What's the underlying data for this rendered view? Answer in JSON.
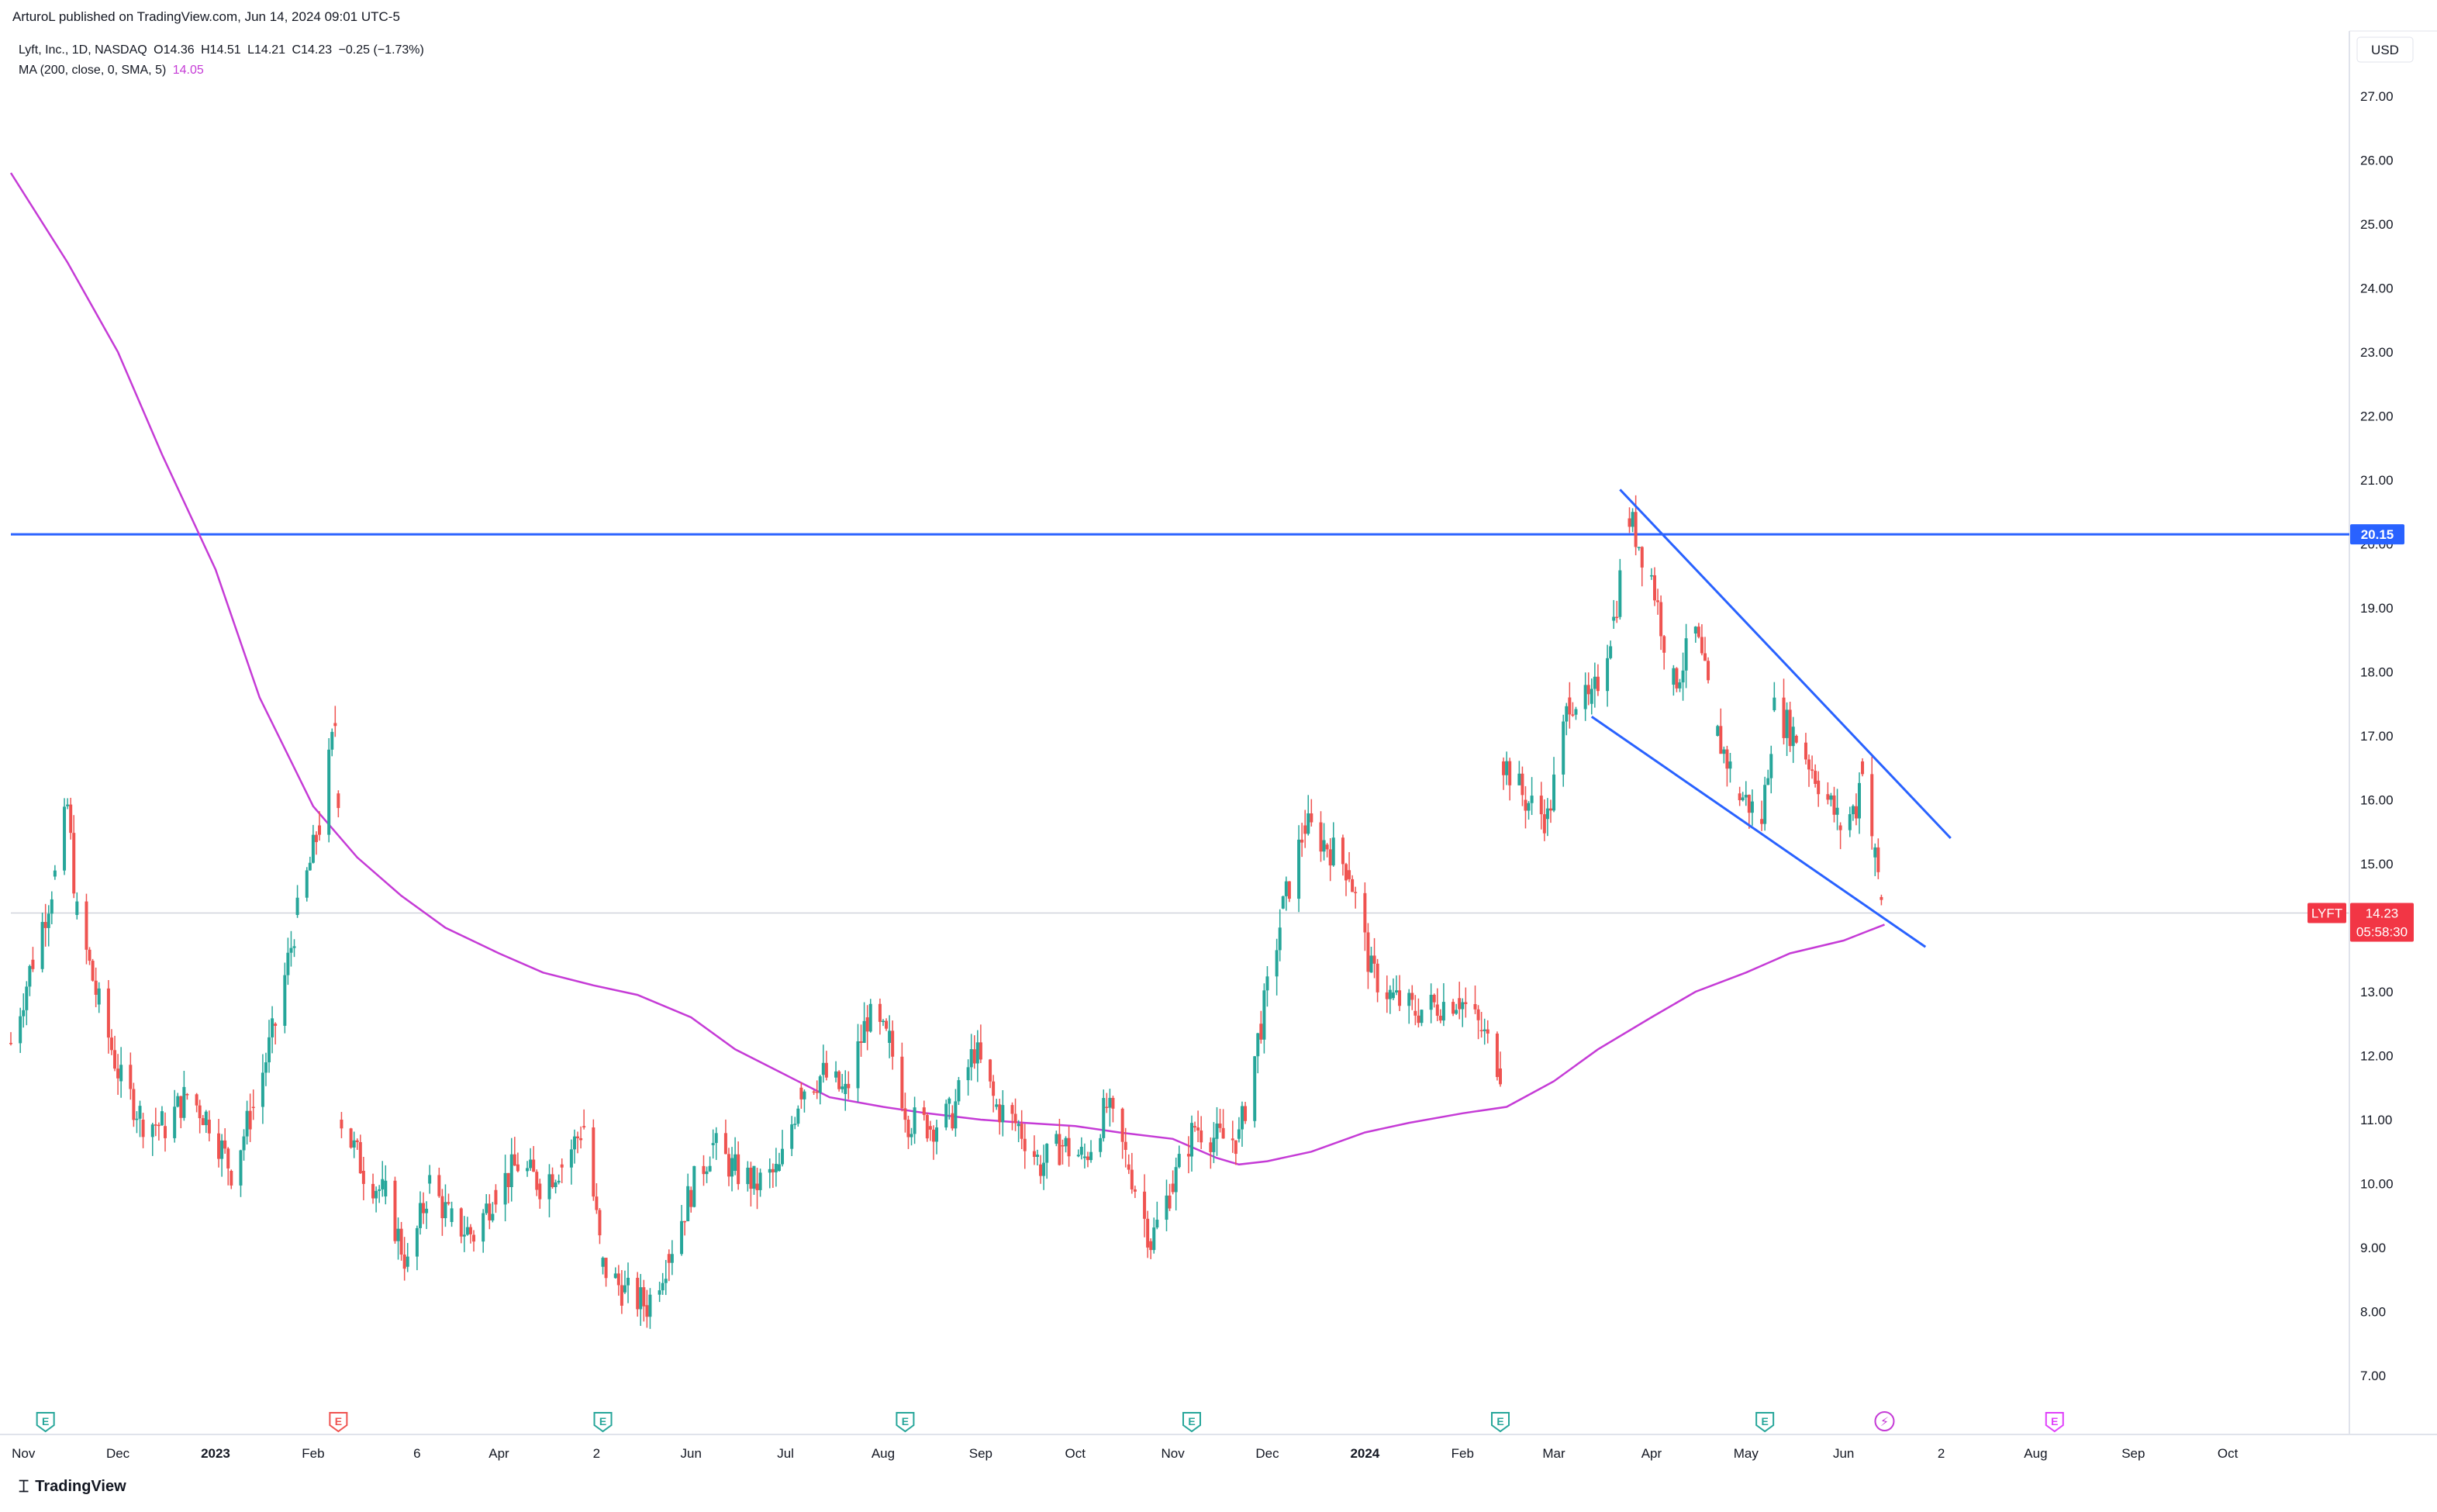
{
  "header": {
    "published": "ArturoL published on TradingView.com, Jun 14, 2024 09:01 UTC-5"
  },
  "legend": {
    "symbol": "Lyft, Inc., 1D, NASDAQ",
    "open": "O14.36",
    "high": "H14.51",
    "low": "L14.21",
    "close": "C14.23",
    "change": "−0.25 (−1.73%)",
    "ma_label": "MA (200, close, 0, SMA, 5)",
    "ma_value": "14.05"
  },
  "price_axis": {
    "currency": "USD",
    "ticks": [
      "27.00",
      "26.00",
      "25.00",
      "24.00",
      "23.00",
      "22.00",
      "21.00",
      "20.00",
      "19.00",
      "18.00",
      "17.00",
      "16.00",
      "15.00",
      "14.00",
      "13.00",
      "12.00",
      "11.00",
      "10.00",
      "9.00",
      "8.00",
      "7.00"
    ],
    "tick_values": [
      27,
      26,
      25,
      24,
      23,
      22,
      21,
      20,
      19,
      18,
      17,
      16,
      15,
      14,
      13,
      12,
      11,
      10,
      9,
      8,
      7
    ]
  },
  "time_axis": {
    "labels": [
      "Nov",
      "Dec",
      "2023",
      "Feb",
      "6",
      "Apr",
      "2",
      "Jun",
      "Jul",
      "Aug",
      "Sep",
      "Oct",
      "Nov",
      "Dec",
      "2024",
      "Feb",
      "Mar",
      "Apr",
      "May",
      "Jun",
      "2",
      "Aug",
      "Sep",
      "Oct"
    ],
    "bold": [
      "2023",
      "2024"
    ]
  },
  "tags": {
    "level_value": "20.15",
    "last_symbol": "LYFT",
    "last_price": "14.23",
    "countdown": "05:58:30"
  },
  "footer": {
    "brand": "TradingView"
  },
  "colors": {
    "up": "#26a69a",
    "down": "#ef5350",
    "ma": "#c53bd6",
    "line": "#2962ff",
    "tag_red": "#f23645"
  },
  "events": [
    {
      "type": "earnings",
      "color": "#26a69a",
      "date_index": "nov-2022"
    },
    {
      "type": "earnings",
      "color": "#ef5350",
      "date_index": "feb-2023"
    },
    {
      "type": "earnings",
      "color": "#26a69a",
      "date_index": "may-2023"
    },
    {
      "type": "earnings",
      "color": "#26a69a",
      "date_index": "aug-2023"
    },
    {
      "type": "earnings",
      "color": "#26a69a",
      "date_index": "nov-2023"
    },
    {
      "type": "earnings",
      "color": "#26a69a",
      "date_index": "feb-2024"
    },
    {
      "type": "earnings",
      "color": "#26a69a",
      "date_index": "may-2024"
    },
    {
      "type": "split",
      "color": "#c53bd6",
      "date_index": "jun-2024"
    },
    {
      "type": "earnings",
      "color": "#e040fb",
      "date_index": "aug-2024"
    }
  ],
  "chart_data": {
    "type": "candlestick",
    "symbol": "LYFT",
    "timeframe": "1D",
    "ylim": [
      6.5,
      27.5
    ],
    "horizontal_level": 20.15,
    "last_price": 14.23,
    "price_series": {
      "name": "Lyft, Inc.",
      "points": [
        [
          "2022-10-28",
          12.2
        ],
        [
          "2022-11-04",
          13.5
        ],
        [
          "2022-11-11",
          14.8
        ],
        [
          "2022-11-15",
          15.9
        ],
        [
          "2022-11-18",
          14.2
        ],
        [
          "2022-11-25",
          12.8
        ],
        [
          "2022-12-02",
          11.6
        ],
        [
          "2022-12-09",
          11.0
        ],
        [
          "2022-12-16",
          10.9
        ],
        [
          "2022-12-23",
          11.4
        ],
        [
          "2022-12-30",
          11.0
        ],
        [
          "2023-01-06",
          10.2
        ],
        [
          "2023-01-13",
          11.2
        ],
        [
          "2023-01-20",
          12.5
        ],
        [
          "2023-01-27",
          14.2
        ],
        [
          "2023-02-03",
          15.6
        ],
        [
          "2023-02-08",
          17.2
        ],
        [
          "2023-02-09",
          16.1
        ],
        [
          "2023-02-10",
          11.0
        ],
        [
          "2023-02-17",
          10.2
        ],
        [
          "2023-02-24",
          9.8
        ],
        [
          "2023-03-03",
          8.7
        ],
        [
          "2023-03-10",
          10.0
        ],
        [
          "2023-03-17",
          9.4
        ],
        [
          "2023-03-24",
          9.2
        ],
        [
          "2023-03-31",
          9.9
        ],
        [
          "2023-04-07",
          10.3
        ],
        [
          "2023-04-14",
          10.0
        ],
        [
          "2023-04-21",
          10.3
        ],
        [
          "2023-04-28",
          10.9
        ],
        [
          "2023-05-04",
          8.7
        ],
        [
          "2023-05-11",
          8.3
        ],
        [
          "2023-05-18",
          8.1
        ],
        [
          "2023-05-25",
          8.9
        ],
        [
          "2023-06-01",
          9.9
        ],
        [
          "2023-06-08",
          10.6
        ],
        [
          "2023-06-15",
          10.2
        ],
        [
          "2023-06-22",
          10.0
        ],
        [
          "2023-06-29",
          10.2
        ],
        [
          "2023-07-06",
          11.5
        ],
        [
          "2023-07-13",
          11.7
        ],
        [
          "2023-07-20",
          11.4
        ],
        [
          "2023-07-27",
          12.6
        ],
        [
          "2023-08-03",
          12.2
        ],
        [
          "2023-08-09",
          11.0
        ],
        [
          "2023-08-16",
          10.9
        ],
        [
          "2023-08-23",
          11.1
        ],
        [
          "2023-08-30",
          12.1
        ],
        [
          "2023-09-06",
          11.2
        ],
        [
          "2023-09-13",
          10.9
        ],
        [
          "2023-09-20",
          10.3
        ],
        [
          "2023-09-27",
          10.6
        ],
        [
          "2023-10-04",
          10.4
        ],
        [
          "2023-10-11",
          11.2
        ],
        [
          "2023-10-18",
          10.3
        ],
        [
          "2023-10-25",
          9.1
        ],
        [
          "2023-11-01",
          10.0
        ],
        [
          "2023-11-08",
          10.9
        ],
        [
          "2023-11-15",
          10.7
        ],
        [
          "2023-11-22",
          10.7
        ],
        [
          "2023-11-29",
          12.5
        ],
        [
          "2023-12-06",
          14.3
        ],
        [
          "2023-12-13",
          15.6
        ],
        [
          "2023-12-20",
          15.3
        ],
        [
          "2023-12-27",
          14.9
        ],
        [
          "2024-01-03",
          13.3
        ],
        [
          "2024-01-10",
          12.9
        ],
        [
          "2024-01-17",
          12.7
        ],
        [
          "2024-01-24",
          12.8
        ],
        [
          "2024-01-31",
          12.9
        ],
        [
          "2024-02-07",
          12.4
        ],
        [
          "2024-02-13",
          11.8
        ],
        [
          "2024-02-14",
          16.6
        ],
        [
          "2024-02-21",
          16.0
        ],
        [
          "2024-02-28",
          15.7
        ],
        [
          "2024-03-06",
          17.6
        ],
        [
          "2024-03-13",
          17.5
        ],
        [
          "2024-03-20",
          18.8
        ],
        [
          "2024-03-25",
          20.4
        ],
        [
          "2024-04-01",
          19.5
        ],
        [
          "2024-04-08",
          17.8
        ],
        [
          "2024-04-15",
          18.6
        ],
        [
          "2024-04-22",
          17.0
        ],
        [
          "2024-04-29",
          16.1
        ],
        [
          "2024-05-06",
          15.7
        ],
        [
          "2024-05-10",
          17.4
        ],
        [
          "2024-05-17",
          17.0
        ],
        [
          "2024-05-24",
          16.3
        ],
        [
          "2024-05-31",
          15.6
        ],
        [
          "2024-06-05",
          15.9
        ],
        [
          "2024-06-07",
          16.6
        ],
        [
          "2024-06-11",
          15.1
        ],
        [
          "2024-06-13",
          14.48
        ],
        [
          "2024-06-14",
          14.23
        ]
      ]
    },
    "ma_series": {
      "name": "MA (200, close, 0, SMA, 5)",
      "points": [
        [
          "2022-10-28",
          25.8
        ],
        [
          "2022-11-15",
          24.4
        ],
        [
          "2022-12-01",
          23.0
        ],
        [
          "2022-12-15",
          21.4
        ],
        [
          "2023-01-01",
          19.6
        ],
        [
          "2023-01-15",
          17.6
        ],
        [
          "2023-02-01",
          15.9
        ],
        [
          "2023-02-15",
          15.1
        ],
        [
          "2023-03-01",
          14.5
        ],
        [
          "2023-03-15",
          14.0
        ],
        [
          "2023-04-01",
          13.6
        ],
        [
          "2023-04-15",
          13.3
        ],
        [
          "2023-05-01",
          13.1
        ],
        [
          "2023-05-15",
          12.95
        ],
        [
          "2023-06-01",
          12.6
        ],
        [
          "2023-06-15",
          12.1
        ],
        [
          "2023-07-01",
          11.7
        ],
        [
          "2023-07-15",
          11.35
        ],
        [
          "2023-08-01",
          11.2
        ],
        [
          "2023-08-15",
          11.1
        ],
        [
          "2023-09-01",
          11.0
        ],
        [
          "2023-09-15",
          10.95
        ],
        [
          "2023-10-01",
          10.9
        ],
        [
          "2023-10-15",
          10.8
        ],
        [
          "2023-11-01",
          10.7
        ],
        [
          "2023-11-15",
          10.4
        ],
        [
          "2023-11-22",
          10.3
        ],
        [
          "2023-12-01",
          10.35
        ],
        [
          "2023-12-15",
          10.5
        ],
        [
          "2024-01-01",
          10.8
        ],
        [
          "2024-01-15",
          10.95
        ],
        [
          "2024-02-01",
          11.1
        ],
        [
          "2024-02-15",
          11.2
        ],
        [
          "2024-03-01",
          11.6
        ],
        [
          "2024-03-15",
          12.1
        ],
        [
          "2024-04-01",
          12.6
        ],
        [
          "2024-04-15",
          13.0
        ],
        [
          "2024-05-01",
          13.3
        ],
        [
          "2024-05-15",
          13.6
        ],
        [
          "2024-06-01",
          13.8
        ],
        [
          "2024-06-14",
          14.05
        ]
      ]
    },
    "trendlines": [
      {
        "name": "upper",
        "from": [
          "2024-03-22",
          20.85
        ],
        "to": [
          "2024-07-05",
          15.4
        ]
      },
      {
        "name": "lower",
        "from": [
          "2024-03-13",
          17.3
        ],
        "to": [
          "2024-06-27",
          13.7
        ]
      }
    ]
  }
}
